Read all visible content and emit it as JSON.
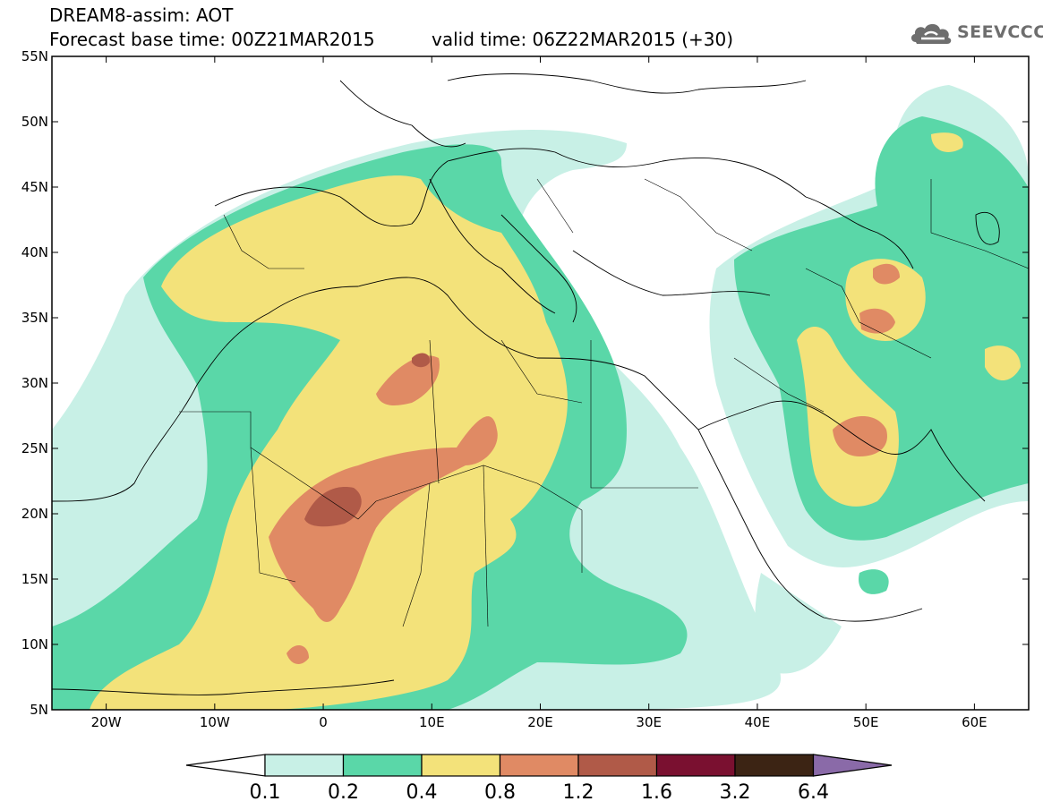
{
  "header": {
    "title": "DREAM8-assim: AOT",
    "base_time": "Forecast base time: 00Z21MAR2015",
    "valid_time": "valid time: 06Z22MAR2015 (+30)",
    "logo_text": "SEEVCCC"
  },
  "map": {
    "lon_range": [
      -25,
      65
    ],
    "lat_range": [
      5,
      55
    ],
    "lat_ticks": [
      {
        "value": 55,
        "label": "55N"
      },
      {
        "value": 50,
        "label": "50N"
      },
      {
        "value": 45,
        "label": "45N"
      },
      {
        "value": 40,
        "label": "40N"
      },
      {
        "value": 35,
        "label": "35N"
      },
      {
        "value": 30,
        "label": "30N"
      },
      {
        "value": 25,
        "label": "25N"
      },
      {
        "value": 20,
        "label": "20N"
      },
      {
        "value": 15,
        "label": "15N"
      },
      {
        "value": 10,
        "label": "10N"
      },
      {
        "value": 5,
        "label": "5N"
      }
    ],
    "lon_ticks": [
      {
        "value": -20,
        "label": "20W"
      },
      {
        "value": -10,
        "label": "10W"
      },
      {
        "value": 0,
        "label": "0"
      },
      {
        "value": 10,
        "label": "10E"
      },
      {
        "value": 20,
        "label": "20E"
      },
      {
        "value": 30,
        "label": "30E"
      },
      {
        "value": 40,
        "label": "40E"
      },
      {
        "value": 50,
        "label": "50E"
      },
      {
        "value": 60,
        "label": "60E"
      }
    ]
  },
  "colorbar": {
    "thresholds": [
      "0.1",
      "0.2",
      "0.4",
      "0.8",
      "1.2",
      "1.6",
      "3.2",
      "6.4"
    ],
    "colors": {
      "below": "#ffffff",
      "b1": "#c8f0e6",
      "b2": "#5ad7a8",
      "b3": "#f3e27a",
      "b4": "#e08a64",
      "b5": "#b05a48",
      "b6": "#7a1030",
      "b7": "#3c2414",
      "above": "#8a6aa8"
    }
  },
  "palette": {
    "c1": "#c8f0e6",
    "c2": "#5ad7a8",
    "c3": "#f3e27a",
    "c4": "#e08a64",
    "c5": "#b05a48",
    "border": "#000000"
  }
}
